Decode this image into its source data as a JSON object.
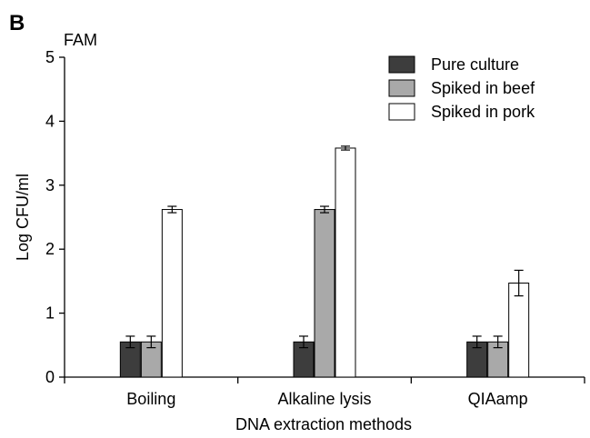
{
  "chart_data": {
    "type": "bar",
    "panel_label": "B",
    "subtitle": "FAM",
    "xlabel": "DNA extraction methods",
    "ylabel": "Log CFU/ml",
    "ylim": [
      0,
      5
    ],
    "yticks": [
      "0",
      "1",
      "2",
      "3",
      "4",
      "5"
    ],
    "categories": [
      "Boiling",
      "Alkaline lysis",
      "QIAamp"
    ],
    "grid": false,
    "legend_position": "top-right",
    "error_bars": true,
    "series": [
      {
        "name": "Pure culture",
        "color": "#3d3d3d",
        "values": [
          0.55,
          0.55,
          0.55
        ],
        "errors": [
          0.09,
          0.09,
          0.09
        ]
      },
      {
        "name": "Spiked in beef",
        "color": "#a9a9a9",
        "values": [
          0.55,
          2.62,
          0.55
        ],
        "errors": [
          0.09,
          0.05,
          0.09
        ]
      },
      {
        "name": "Spiked in pork",
        "color": "#ffffff",
        "values": [
          2.62,
          3.58,
          1.47
        ],
        "errors": [
          0.05,
          0.03,
          0.2
        ]
      }
    ]
  }
}
